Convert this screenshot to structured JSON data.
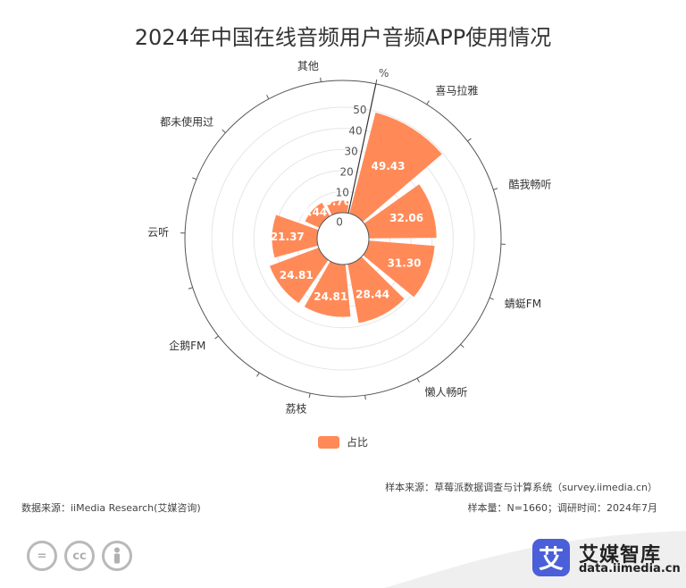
{
  "title": "2024年中国在线音频用户音频APP使用情况",
  "chart_data": {
    "type": "bar",
    "layout": "polar",
    "categories": [
      "喜马拉雅",
      "酷我畅听",
      "蜻蜓FM",
      "懒人畅听",
      "荔枝",
      "企鹅FM",
      "云听",
      "都未使用过",
      "其他"
    ],
    "series": [
      {
        "name": "占比",
        "values": [
          49.43,
          32.06,
          31.3,
          28.44,
          24.81,
          24.81,
          21.37,
          7.44,
          5.76
        ]
      }
    ],
    "radial_axis": {
      "min": 0,
      "max": 50,
      "ticks": [
        0,
        10,
        20,
        30,
        40,
        50
      ],
      "unit": "%"
    },
    "legend": "bottom",
    "bar_color": "#ff8a58"
  },
  "notes": {
    "sample_source": "样本来源：草莓派数据调查与计算系统（survey.iimedia.cn）",
    "data_source": "数据来源：iiMedia Research(艾媒咨询)",
    "sample_info": "样本量：N=1660；调研时间：2024年7月"
  },
  "license_icons": [
    "equals-icon",
    "cc-icon",
    "person-icon"
  ],
  "license_labels": {
    "equals": "=",
    "cc": "cc"
  },
  "brand": {
    "logo_char": "艾",
    "name": "艾媒智库",
    "url": "data.iimedia.cn",
    "color": "#4b5fd8"
  }
}
